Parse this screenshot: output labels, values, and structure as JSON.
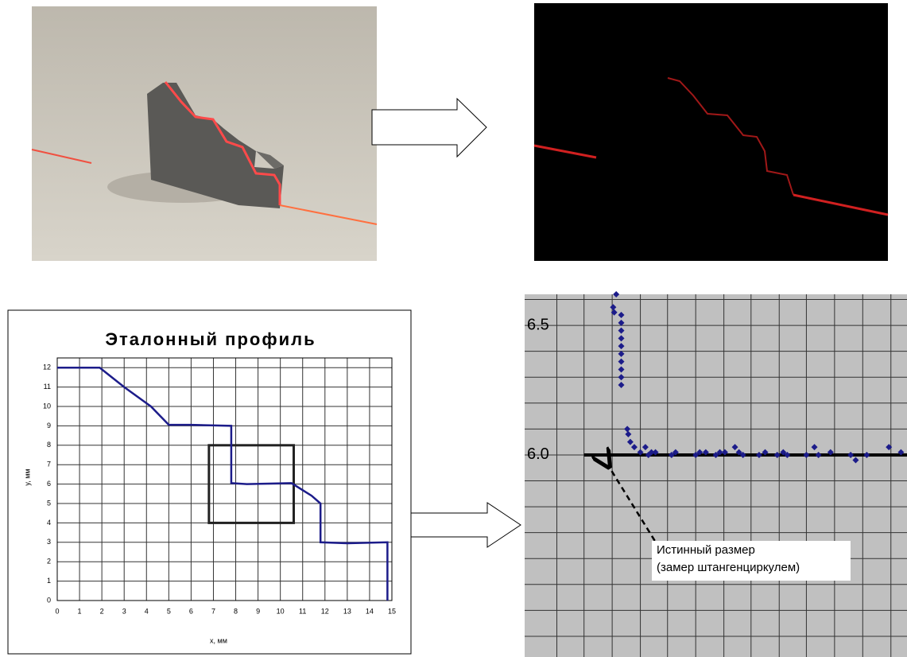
{
  "chart_data": [
    {
      "type": "line",
      "title": "Эталонный профиль",
      "x_label": "x, мм",
      "y_label": "y, мм",
      "xlim": [
        0,
        15
      ],
      "ylim": [
        0,
        12.5
      ],
      "xticks": [
        0,
        1,
        2,
        3,
        4,
        5,
        6,
        7,
        8,
        9,
        10,
        11,
        12,
        13,
        14,
        15
      ],
      "yticks": [
        0,
        1,
        2,
        3,
        4,
        5,
        6,
        7,
        8,
        9,
        10,
        11,
        12
      ],
      "grid": true,
      "series": [
        {
          "color": "#1c1c8a",
          "x": [
            0,
            1.9,
            3,
            4.2,
            5,
            6,
            7.8,
            7.8,
            8.5,
            10.5,
            11.4,
            11.8,
            11.8,
            13,
            14.8,
            14.8
          ],
          "values": [
            12,
            12,
            11,
            10,
            9.05,
            9.05,
            9,
            6.05,
            6,
            6.05,
            5.4,
            5,
            3,
            2.95,
            3,
            0
          ]
        }
      ],
      "highlight": {
        "x": [
          6.8,
          10.6
        ],
        "y": [
          4,
          8
        ]
      }
    },
    {
      "type": "scatter",
      "xlim": [
        6.8,
        10.6
      ],
      "ylim": [
        5.22,
        6.62
      ],
      "yticks": [
        6.5,
        {
          "value": 6,
          "label": "6.0"
        }
      ],
      "ygrid": [
        5.3,
        5.4,
        5.5,
        5.6,
        5.7,
        5.8,
        5.9,
        6.0,
        6.1,
        6.2,
        6.3,
        6.4,
        6.5,
        6.6
      ],
      "xgrid": [
        7.12,
        7.39,
        7.67,
        7.95,
        8.22,
        8.5,
        8.78,
        9.05,
        9.33,
        9.6,
        9.88,
        10.16,
        10.44
      ],
      "series": [
        {
          "color": "#1c1c8a",
          "x": [
            7.68,
            7.69,
            7.71,
            7.76,
            7.76,
            7.76,
            7.76,
            7.76,
            7.76,
            7.76,
            7.76,
            7.76,
            7.76,
            7.82,
            7.83,
            7.85,
            7.89,
            7.95,
            8.0,
            8.03,
            8.06,
            8.1,
            8.26,
            8.3,
            8.5,
            8.54,
            8.6,
            8.7,
            8.74,
            8.79,
            8.89,
            8.93,
            8.97,
            9.13,
            9.19,
            9.31,
            9.37,
            9.41,
            9.6,
            9.68,
            9.72,
            9.84,
            10.04,
            10.09,
            10.2,
            10.42,
            10.54
          ],
          "values": [
            6.57,
            6.55,
            6.62,
            6.54,
            6.51,
            6.48,
            6.45,
            6.42,
            6.39,
            6.36,
            6.33,
            6.3,
            6.27,
            6.1,
            6.08,
            6.05,
            6.03,
            6.01,
            6.03,
            6.0,
            6.01,
            6.01,
            6.0,
            6.01,
            6.0,
            6.01,
            6.01,
            6.0,
            6.01,
            6.01,
            6.03,
            6.01,
            6.0,
            6.0,
            6.01,
            6.0,
            6.01,
            6.0,
            6.0,
            6.03,
            6.0,
            6.01,
            6.0,
            5.98,
            6.0,
            6.03,
            6.01
          ]
        }
      ],
      "reference_line": {
        "y": 6,
        "x": [
          7.39,
          10.6
        ],
        "color": "#000000"
      },
      "annotation": [
        "Истинный размер",
        "(замер штангенциркулем)"
      ]
    }
  ]
}
